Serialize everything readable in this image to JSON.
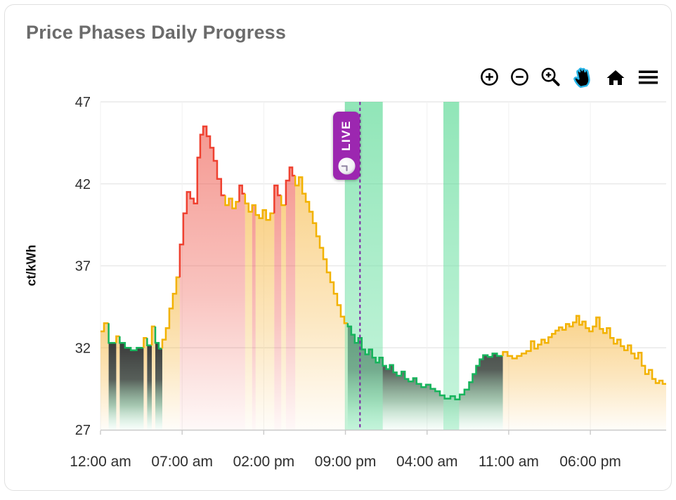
{
  "card": {
    "title": "Price Phases Daily Progress"
  },
  "modebar": {
    "accent": "#26b3e6",
    "buttons": [
      {
        "id": "zoom-in"
      },
      {
        "id": "zoom-out"
      },
      {
        "id": "box-zoom"
      },
      {
        "id": "pan",
        "active": true
      },
      {
        "id": "reset-home"
      },
      {
        "id": "menu"
      }
    ]
  },
  "live_badge": {
    "label": "LIVE"
  },
  "chart_data": {
    "type": "line",
    "title": "Price Phases Daily Progress",
    "ylabel": "ct/kWh",
    "ylim": [
      27,
      47
    ],
    "yticks": [
      27,
      32,
      37,
      42,
      47
    ],
    "xlim": [
      0,
      48.5
    ],
    "xticks": [
      {
        "hour": 0,
        "label": "12:00 am"
      },
      {
        "hour": 7,
        "label": "07:00 am"
      },
      {
        "hour": 14,
        "label": "02:00 pm"
      },
      {
        "hour": 21,
        "label": "09:00 pm"
      },
      {
        "hour": 28,
        "label": "04:00 am"
      },
      {
        "hour": 35,
        "label": "11:00 am"
      },
      {
        "hour": 42,
        "label": "06:00 pm"
      }
    ],
    "grid": true,
    "legend": false,
    "live": {
      "hour": 22.25,
      "label": "LIVE"
    },
    "bands": [
      {
        "start": 20.95,
        "end": 24.2
      },
      {
        "start": 29.4,
        "end": 30.75
      }
    ],
    "colors": {
      "line": {
        "y": "#f2b200",
        "r": "#ef4130",
        "g": "#17b45c"
      },
      "grid_h": "#e9e9e9",
      "grid_v": "#f1f1f1",
      "axis": "#c9c9c9",
      "tick_label": "#2e2e2e",
      "live_line": "#7e22a3",
      "badge_bg": "#9c27b0",
      "band_top": "rgba(77,214,140,0.62)",
      "band_bottom": "rgba(152,236,192,0.55)",
      "fill_stops": {
        "y": [
          [
            "0%",
            "#f6b43b",
            0.6
          ],
          [
            "55%",
            "#f6b43b",
            0.32
          ],
          [
            "100%",
            "#f6b43b",
            0.03
          ]
        ],
        "r": [
          [
            "0%",
            "#ee5a4e",
            0.62
          ],
          [
            "55%",
            "#ee5a4e",
            0.36
          ],
          [
            "100%",
            "#ee5a4e",
            0.04
          ]
        ],
        "g": [
          [
            "0%",
            "#2c2c2c",
            0.93
          ],
          [
            "42%",
            "#39423c",
            0.85
          ],
          [
            "72%",
            "#4d8f63",
            0.5
          ],
          [
            "100%",
            "#7fd6a4",
            0.05
          ]
        ]
      }
    },
    "segments_format": "[start_hour, end_hour, price_ct_per_kwh, phase(line), optional_fill_phase]",
    "segments": [
      [
        0,
        0.3,
        33.0,
        "y"
      ],
      [
        0.3,
        0.7,
        33.5,
        "y"
      ],
      [
        0.7,
        1.35,
        32.3,
        "g"
      ],
      [
        1.35,
        1.65,
        32.7,
        "y"
      ],
      [
        1.65,
        2.1,
        32.3,
        "g"
      ],
      [
        2.1,
        2.6,
        32.0,
        "g"
      ],
      [
        2.6,
        3.1,
        31.85,
        "g"
      ],
      [
        3.1,
        3.7,
        32.0,
        "g"
      ],
      [
        3.7,
        4.0,
        32.6,
        "y"
      ],
      [
        4.0,
        4.4,
        32.15,
        "g"
      ],
      [
        4.4,
        4.7,
        33.3,
        "y"
      ],
      [
        4.7,
        5.0,
        32.3,
        "g"
      ],
      [
        5.0,
        5.3,
        31.95,
        "g"
      ],
      [
        5.3,
        5.6,
        32.5,
        "y"
      ],
      [
        5.6,
        5.9,
        33.2,
        "y"
      ],
      [
        5.9,
        6.2,
        34.4,
        "y"
      ],
      [
        6.2,
        6.5,
        35.3,
        "y"
      ],
      [
        6.5,
        6.8,
        36.3,
        "y"
      ],
      [
        6.8,
        7.1,
        38.3,
        "r"
      ],
      [
        7.1,
        7.4,
        40.2,
        "r"
      ],
      [
        7.4,
        7.7,
        41.5,
        "r"
      ],
      [
        7.7,
        8.0,
        41.1,
        "r"
      ],
      [
        8.0,
        8.3,
        40.8,
        "r"
      ],
      [
        8.3,
        8.55,
        43.6,
        "r"
      ],
      [
        8.55,
        8.8,
        45.0,
        "r"
      ],
      [
        8.8,
        9.1,
        45.5,
        "r"
      ],
      [
        9.1,
        9.4,
        44.9,
        "r"
      ],
      [
        9.4,
        9.7,
        44.2,
        "r"
      ],
      [
        9.7,
        10.0,
        43.4,
        "r"
      ],
      [
        10.0,
        10.35,
        42.3,
        "r"
      ],
      [
        10.35,
        10.7,
        41.3,
        "r"
      ],
      [
        10.7,
        11.0,
        40.7,
        "y",
        "r"
      ],
      [
        11.0,
        11.3,
        41.1,
        "y",
        "r"
      ],
      [
        11.3,
        11.6,
        40.5,
        "y",
        "r"
      ],
      [
        11.6,
        11.9,
        40.9,
        "y",
        "r"
      ],
      [
        11.9,
        12.15,
        41.9,
        "r"
      ],
      [
        12.15,
        12.4,
        41.4,
        "r"
      ],
      [
        12.4,
        12.7,
        40.8,
        "y"
      ],
      [
        12.7,
        13.0,
        40.3,
        "y"
      ],
      [
        13.0,
        13.3,
        40.7,
        "y",
        "r"
      ],
      [
        13.3,
        13.6,
        40.1,
        "y"
      ],
      [
        13.6,
        13.9,
        39.9,
        "y"
      ],
      [
        13.9,
        14.2,
        40.4,
        "y"
      ],
      [
        14.2,
        14.55,
        39.8,
        "y"
      ],
      [
        14.55,
        14.9,
        40.2,
        "y"
      ],
      [
        14.9,
        15.2,
        41.9,
        "r"
      ],
      [
        15.2,
        15.5,
        41.3,
        "r"
      ],
      [
        15.5,
        15.9,
        40.7,
        "y"
      ],
      [
        15.9,
        16.2,
        42.2,
        "r"
      ],
      [
        16.2,
        16.45,
        43.0,
        "r"
      ],
      [
        16.45,
        16.7,
        42.5,
        "r"
      ],
      [
        16.7,
        17.0,
        41.9,
        "y"
      ],
      [
        17.0,
        17.3,
        42.4,
        "y"
      ],
      [
        17.3,
        17.6,
        41.4,
        "y"
      ],
      [
        17.6,
        17.9,
        40.9,
        "y"
      ],
      [
        17.9,
        18.2,
        40.3,
        "y"
      ],
      [
        18.2,
        18.5,
        39.6,
        "y"
      ],
      [
        18.5,
        18.8,
        38.8,
        "y"
      ],
      [
        18.8,
        19.1,
        38.1,
        "y"
      ],
      [
        19.1,
        19.4,
        37.4,
        "y"
      ],
      [
        19.4,
        19.7,
        36.6,
        "y"
      ],
      [
        19.7,
        20.0,
        36.0,
        "y"
      ],
      [
        20.0,
        20.3,
        35.3,
        "y"
      ],
      [
        20.3,
        20.6,
        34.6,
        "y"
      ],
      [
        20.6,
        20.9,
        33.9,
        "y"
      ],
      [
        20.9,
        21.2,
        33.5,
        "y"
      ],
      [
        21.2,
        21.5,
        33.3,
        "g"
      ],
      [
        21.5,
        21.8,
        32.8,
        "g"
      ],
      [
        21.8,
        22.1,
        32.3,
        "g"
      ],
      [
        22.1,
        22.4,
        32.6,
        "g"
      ],
      [
        22.4,
        22.7,
        31.9,
        "g"
      ],
      [
        22.7,
        23.0,
        31.6,
        "g"
      ],
      [
        23.0,
        23.3,
        31.9,
        "g"
      ],
      [
        23.3,
        23.6,
        31.4,
        "g"
      ],
      [
        23.6,
        23.9,
        31.1,
        "g"
      ],
      [
        23.9,
        24.2,
        31.4,
        "g"
      ],
      [
        24.2,
        24.5,
        30.9,
        "g"
      ],
      [
        24.5,
        24.8,
        30.7,
        "g"
      ],
      [
        24.8,
        25.1,
        30.95,
        "g"
      ],
      [
        25.1,
        25.4,
        30.5,
        "g"
      ],
      [
        25.4,
        25.8,
        30.3,
        "g"
      ],
      [
        25.8,
        26.1,
        30.55,
        "g"
      ],
      [
        26.1,
        26.4,
        30.1,
        "g"
      ],
      [
        26.4,
        26.8,
        29.95,
        "g"
      ],
      [
        26.8,
        27.1,
        30.15,
        "g"
      ],
      [
        27.1,
        27.5,
        29.8,
        "g"
      ],
      [
        27.5,
        27.9,
        29.6,
        "g"
      ],
      [
        27.9,
        28.3,
        29.75,
        "g"
      ],
      [
        28.3,
        28.7,
        29.5,
        "g"
      ],
      [
        28.7,
        29.1,
        29.35,
        "g"
      ],
      [
        29.1,
        29.5,
        29.1,
        "g"
      ],
      [
        29.5,
        30.0,
        28.9,
        "g"
      ],
      [
        30.0,
        30.4,
        29.05,
        "g"
      ],
      [
        30.4,
        30.8,
        28.85,
        "g"
      ],
      [
        30.8,
        31.2,
        29.15,
        "g"
      ],
      [
        31.2,
        31.6,
        29.45,
        "g"
      ],
      [
        31.6,
        31.9,
        29.9,
        "g"
      ],
      [
        31.9,
        32.2,
        30.4,
        "g"
      ],
      [
        32.2,
        32.5,
        30.9,
        "g"
      ],
      [
        32.5,
        32.8,
        31.3,
        "g"
      ],
      [
        32.8,
        33.2,
        31.55,
        "g"
      ],
      [
        33.2,
        33.6,
        31.45,
        "g"
      ],
      [
        33.6,
        34.0,
        31.65,
        "g"
      ],
      [
        34.0,
        34.5,
        31.5,
        "g"
      ],
      [
        34.5,
        34.9,
        31.75,
        "y"
      ],
      [
        34.9,
        35.3,
        31.5,
        "y"
      ],
      [
        35.3,
        35.7,
        31.35,
        "y"
      ],
      [
        35.7,
        36.1,
        31.5,
        "y"
      ],
      [
        36.1,
        36.5,
        31.65,
        "y"
      ],
      [
        36.5,
        36.9,
        31.8,
        "y"
      ],
      [
        36.9,
        37.2,
        32.4,
        "y"
      ],
      [
        37.2,
        37.5,
        31.95,
        "y"
      ],
      [
        37.5,
        37.8,
        32.2,
        "y"
      ],
      [
        37.8,
        38.1,
        32.5,
        "y"
      ],
      [
        38.1,
        38.4,
        32.3,
        "y"
      ],
      [
        38.4,
        38.7,
        32.65,
        "y"
      ],
      [
        38.7,
        39.0,
        32.85,
        "y"
      ],
      [
        39.0,
        39.3,
        33.05,
        "y"
      ],
      [
        39.3,
        39.6,
        33.25,
        "y"
      ],
      [
        39.6,
        39.9,
        33.1,
        "y"
      ],
      [
        39.9,
        40.2,
        33.45,
        "y"
      ],
      [
        40.2,
        40.5,
        33.3,
        "y"
      ],
      [
        40.5,
        40.8,
        33.55,
        "y"
      ],
      [
        40.8,
        41.05,
        33.95,
        "y"
      ],
      [
        41.05,
        41.3,
        33.4,
        "y"
      ],
      [
        41.3,
        41.6,
        33.6,
        "y"
      ],
      [
        41.6,
        41.9,
        33.2,
        "y"
      ],
      [
        41.9,
        42.2,
        33.0,
        "y"
      ],
      [
        42.2,
        42.5,
        33.3,
        "y"
      ],
      [
        42.5,
        42.8,
        33.85,
        "y"
      ],
      [
        42.8,
        43.1,
        33.15,
        "y"
      ],
      [
        43.1,
        43.4,
        32.9,
        "y"
      ],
      [
        43.4,
        43.7,
        33.2,
        "y"
      ],
      [
        43.7,
        44.0,
        32.6,
        "y"
      ],
      [
        44.0,
        44.3,
        32.25,
        "y"
      ],
      [
        44.3,
        44.6,
        32.5,
        "y"
      ],
      [
        44.6,
        44.9,
        32.1,
        "y"
      ],
      [
        44.9,
        45.2,
        31.85,
        "y"
      ],
      [
        45.2,
        45.5,
        32.15,
        "y"
      ],
      [
        45.5,
        45.8,
        31.65,
        "y"
      ],
      [
        45.8,
        46.1,
        31.35,
        "y"
      ],
      [
        46.1,
        46.4,
        31.7,
        "y"
      ],
      [
        46.4,
        46.7,
        30.9,
        "y"
      ],
      [
        46.7,
        47.0,
        30.4,
        "y"
      ],
      [
        47.0,
        47.3,
        30.65,
        "y"
      ],
      [
        47.3,
        47.6,
        30.1,
        "y"
      ],
      [
        47.6,
        47.9,
        29.85,
        "y"
      ],
      [
        47.9,
        48.2,
        30.0,
        "y"
      ],
      [
        48.2,
        48.5,
        29.8,
        "y"
      ]
    ]
  }
}
